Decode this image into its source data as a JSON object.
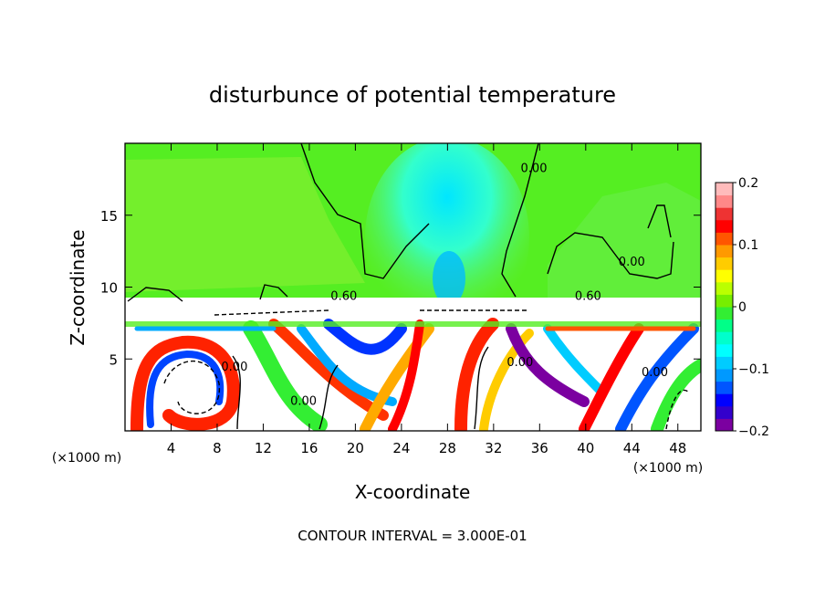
{
  "chart_data": {
    "type": "heatmap",
    "title": "disturbunce of potential temperature",
    "xlabel": "X-coordinate",
    "ylabel": "Z-coordinate",
    "x_unit_label": "(×1000 m)",
    "x_unit_label_right": "(×1000 m)",
    "xlim": [
      0,
      50
    ],
    "ylim": [
      0,
      20
    ],
    "x_ticks": [
      4,
      8,
      12,
      16,
      20,
      24,
      28,
      32,
      36,
      40,
      44,
      48
    ],
    "y_ticks": [
      5,
      10,
      15
    ],
    "contour_interval_text": "CONTOUR INTERVAL = 3.000E-01",
    "contour_labels": [
      {
        "text": "0.60",
        "x": 19.0,
        "z": 9.1
      },
      {
        "text": "0.60",
        "x": 40.2,
        "z": 9.1
      },
      {
        "text": "0.00",
        "x": 35.5,
        "z": 18.0
      },
      {
        "text": "0.00",
        "x": 44.0,
        "z": 11.5
      },
      {
        "text": "0.00",
        "x": 9.5,
        "z": 4.2
      },
      {
        "text": "0.00",
        "x": 15.5,
        "z": 1.8
      },
      {
        "text": "0.00",
        "x": 34.3,
        "z": 4.5
      },
      {
        "text": "0.00",
        "x": 46.0,
        "z": 3.8
      }
    ],
    "colorbar": {
      "min": -0.2,
      "max": 0.2,
      "ticks": [
        "0.2",
        "0.1",
        "0",
        "−0.1",
        "−0.2"
      ],
      "colors": [
        "#7b00a0",
        "#3300cc",
        "#0000ff",
        "#0055ff",
        "#0099ff",
        "#00ccff",
        "#00ffff",
        "#00ffcc",
        "#00ff88",
        "#33ee33",
        "#77ee00",
        "#bbff00",
        "#ffff00",
        "#ffcc00",
        "#ff9900",
        "#ff5500",
        "#ff0000",
        "#ee3333",
        "#ff8888",
        "#ffbbbb"
      ]
    }
  }
}
